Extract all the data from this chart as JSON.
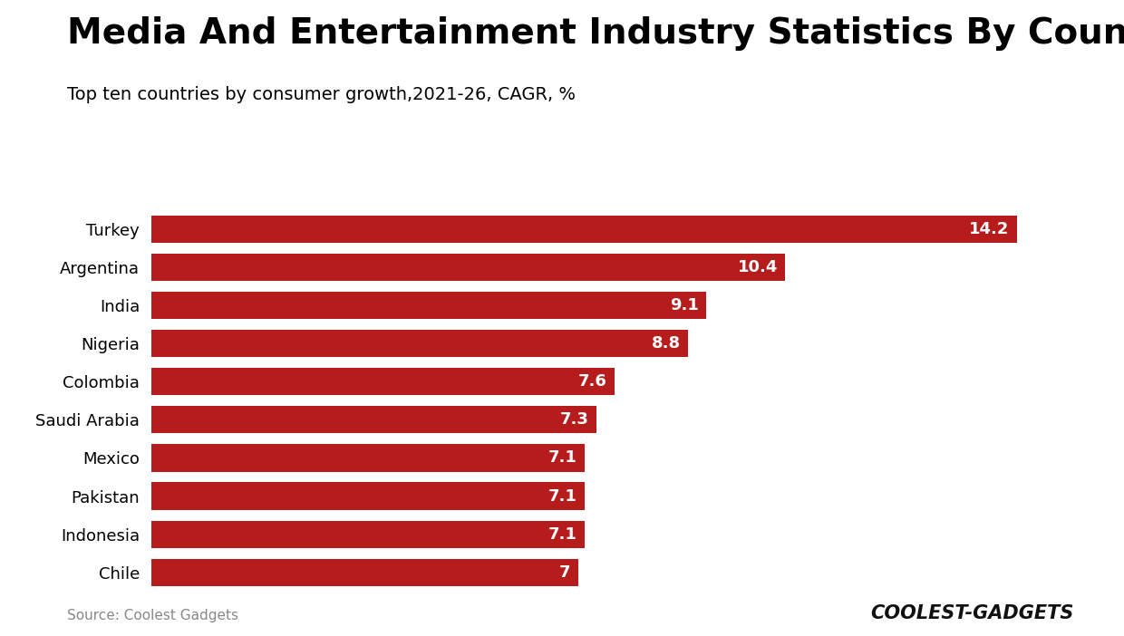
{
  "title": "Media And Entertainment Industry Statistics By Country",
  "subtitle": "Top ten countries by consumer growth,2021-26, CAGR, %",
  "source": "Source: Coolest Gadgets",
  "watermark": "COOLEST-GADGETS",
  "countries": [
    "Chile",
    "Indonesia",
    "Pakistan",
    "Mexico",
    "Saudi Arabia",
    "Colombia",
    "Nigeria",
    "India",
    "Argentina",
    "Turkey"
  ],
  "values": [
    7.0,
    7.1,
    7.1,
    7.1,
    7.3,
    7.6,
    8.8,
    9.1,
    10.4,
    14.2
  ],
  "bar_color": "#b71c1c",
  "label_color": "#ffffff",
  "title_color": "#000000",
  "subtitle_color": "#000000",
  "source_color": "#888888",
  "background_color": "#ffffff",
  "xlim": [
    0,
    15.5
  ],
  "bar_height": 0.72,
  "title_fontsize": 28,
  "subtitle_fontsize": 14,
  "label_fontsize": 13,
  "ytick_fontsize": 13,
  "source_fontsize": 11,
  "watermark_fontsize": 15
}
